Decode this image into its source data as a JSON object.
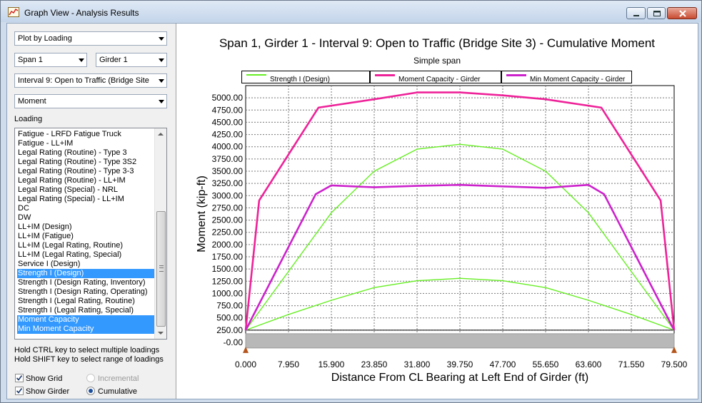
{
  "window": {
    "title": "Graph View - Analysis Results"
  },
  "controls": {
    "plot_mode": "Plot by Loading",
    "span": "Span 1",
    "girder": "Girder 1",
    "interval": "Interval 9: Open to Traffic (Bridge Site",
    "action": "Moment",
    "loading_label": "Loading",
    "hint1": "Hold CTRL key to select multiple loadings",
    "hint2": "Hold SHIFT key to select range of loadings",
    "show_grid": "Show Grid",
    "show_girder": "Show Girder",
    "incremental": "Incremental",
    "cumulative": "Cumulative"
  },
  "loadings": [
    {
      "label": "Fatigue - LRFD Fatigue Truck",
      "selected": false
    },
    {
      "label": "Fatigue - LL+IM",
      "selected": false
    },
    {
      "label": "Legal Rating (Routine) - Type 3",
      "selected": false
    },
    {
      "label": "Legal Rating (Routine) - Type 3S2",
      "selected": false
    },
    {
      "label": "Legal Rating (Routine) - Type 3-3",
      "selected": false
    },
    {
      "label": "Legal Rating (Routine) - LL+IM",
      "selected": false
    },
    {
      "label": "Legal Rating (Special) - NRL",
      "selected": false
    },
    {
      "label": "Legal Rating (Special) - LL+IM",
      "selected": false
    },
    {
      "label": "DC",
      "selected": false
    },
    {
      "label": "DW",
      "selected": false
    },
    {
      "label": "LL+IM (Design)",
      "selected": false
    },
    {
      "label": "LL+IM (Fatigue)",
      "selected": false
    },
    {
      "label": "LL+IM (Legal Rating, Routine)",
      "selected": false
    },
    {
      "label": "LL+IM (Legal Rating, Special)",
      "selected": false
    },
    {
      "label": "Service I (Design)",
      "selected": false
    },
    {
      "label": "Strength I (Design)",
      "selected": true
    },
    {
      "label": "Strength I (Design Rating, Inventory)",
      "selected": false
    },
    {
      "label": "Strength I (Design Rating, Operating)",
      "selected": false
    },
    {
      "label": "Strength I (Legal Rating, Routine)",
      "selected": false
    },
    {
      "label": "Strength I (Legal Rating, Special)",
      "selected": false
    },
    {
      "label": "Moment Capacity",
      "selected": true
    },
    {
      "label": "Min Moment Capacity",
      "selected": true
    }
  ],
  "colors": {
    "green": "#66ee22",
    "magenta": "#ee2299",
    "purple": "#cc22cc",
    "selection": "#3399ff",
    "girder": "#b8b8b8"
  },
  "chart_data": {
    "type": "line",
    "title": "Span 1, Girder 1 - Interval 9: Open to Traffic (Bridge Site 3) - Cumulative Moment",
    "subtitle": "Simple span",
    "xlabel": "Distance From CL Bearing at Left End of Girder (ft)",
    "ylabel": "Moment (kip-ft)",
    "xlim": [
      0,
      79.5
    ],
    "ylim": [
      -250,
      5000
    ],
    "grid": true,
    "x_ticks": [
      "0.000",
      "7.950",
      "15.900",
      "23.850",
      "31.800",
      "39.750",
      "47.700",
      "55.650",
      "63.600",
      "71.550",
      "79.500"
    ],
    "y_ticks": [
      "-0.00",
      "250.00",
      "500.00",
      "750.00",
      "1000.00",
      "1250.00",
      "1500.00",
      "1750.00",
      "2000.00",
      "2250.00",
      "2500.00",
      "2750.00",
      "3000.00",
      "3250.00",
      "3500.00",
      "3750.00",
      "4000.00",
      "4250.00",
      "4500.00",
      "4750.00",
      "5000.00"
    ],
    "series": [
      {
        "name": "Strength I (Design)",
        "color": "#66ee22",
        "points": [
          [
            0,
            0
          ],
          [
            15.9,
            2400
          ],
          [
            23.85,
            3250
          ],
          [
            31.8,
            3700
          ],
          [
            39.75,
            3800
          ],
          [
            47.7,
            3700
          ],
          [
            55.65,
            3250
          ],
          [
            63.6,
            2400
          ],
          [
            79.5,
            0
          ]
        ]
      },
      {
        "name": "",
        "color": "#66ee22",
        "points": [
          [
            0,
            0
          ],
          [
            7.95,
            320
          ],
          [
            15.9,
            610
          ],
          [
            23.85,
            870
          ],
          [
            31.8,
            1010
          ],
          [
            39.75,
            1060
          ],
          [
            47.7,
            1010
          ],
          [
            55.65,
            870
          ],
          [
            63.6,
            610
          ],
          [
            71.55,
            320
          ],
          [
            79.5,
            0
          ]
        ]
      },
      {
        "name": "Moment Capacity - Girder",
        "color": "#ee2299",
        "points": [
          [
            0,
            0
          ],
          [
            2.5,
            2650
          ],
          [
            13.5,
            4550
          ],
          [
            23.85,
            4720
          ],
          [
            31.8,
            4860
          ],
          [
            39.75,
            4860
          ],
          [
            47.7,
            4800
          ],
          [
            55.65,
            4720
          ],
          [
            66,
            4550
          ],
          [
            77,
            2650
          ],
          [
            79.5,
            0
          ]
        ]
      },
      {
        "name": "Min Moment Capacity - Girder",
        "color": "#cc22cc",
        "points": [
          [
            0,
            0
          ],
          [
            13,
            2780
          ],
          [
            15.9,
            2960
          ],
          [
            23.85,
            2920
          ],
          [
            31.8,
            2950
          ],
          [
            39.75,
            2970
          ],
          [
            47.7,
            2940
          ],
          [
            55.65,
            2910
          ],
          [
            63.6,
            2970
          ],
          [
            66.5,
            2780
          ],
          [
            79.5,
            0
          ]
        ]
      }
    ],
    "legend": [
      {
        "label": "Strength I (Design)",
        "color": "#66ee22"
      },
      {
        "label": "Moment Capacity - Girder",
        "color": "#ee2299"
      },
      {
        "label": "Min Moment Capacity - Girder",
        "color": "#cc22cc"
      }
    ],
    "legend_position": "top"
  }
}
